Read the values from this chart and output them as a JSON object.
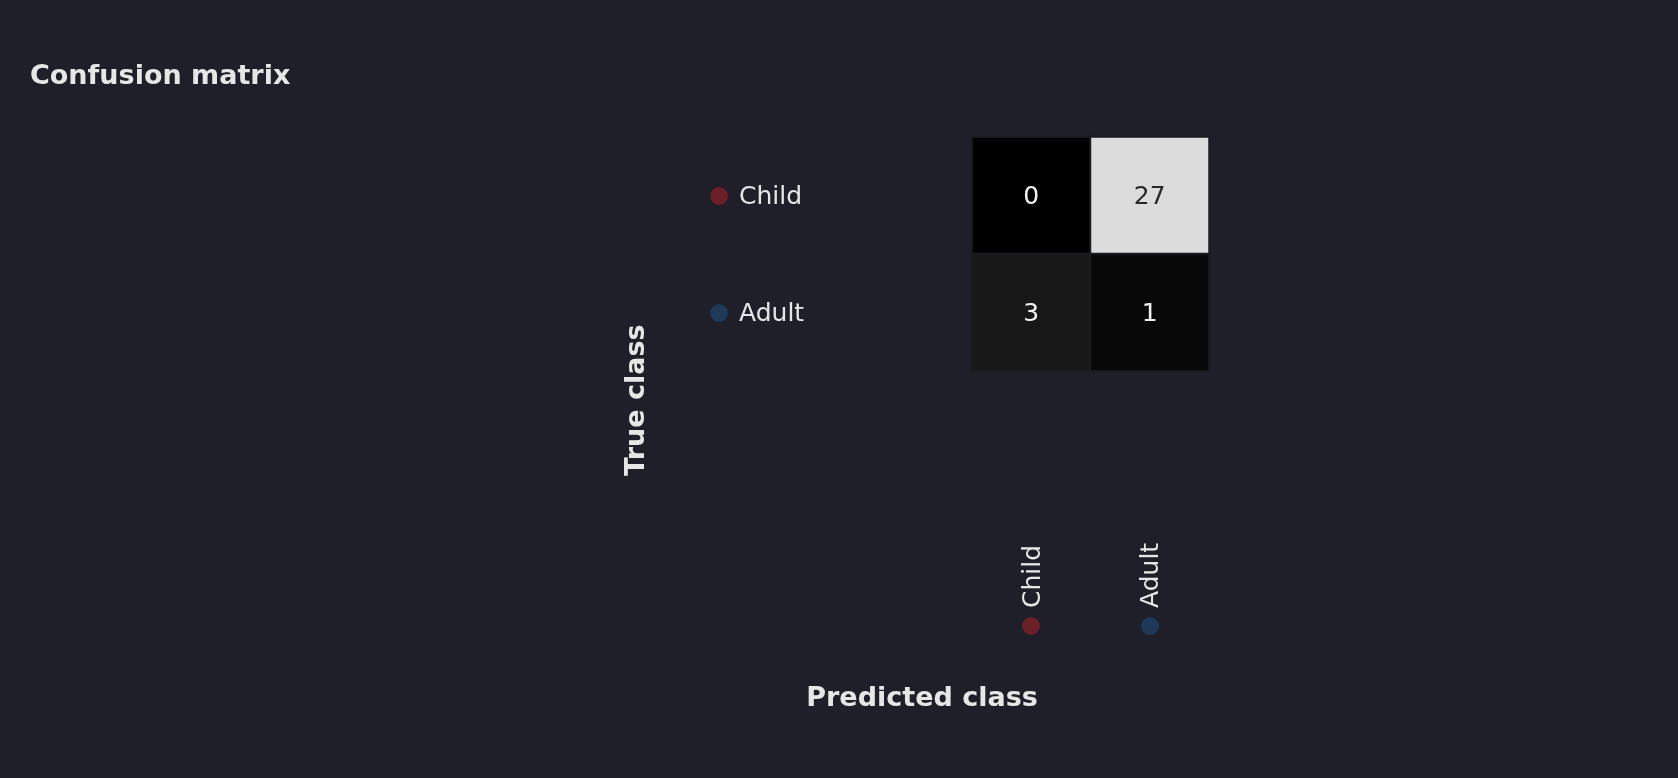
{
  "chart_data": {
    "type": "heatmap",
    "title": "Confusion matrix",
    "xlabel": "Predicted class",
    "ylabel": "True class",
    "categories": [
      "Child",
      "Adult"
    ],
    "y_categories": [
      "Child",
      "Adult"
    ],
    "cells": [
      [
        0,
        27
      ],
      [
        3,
        1
      ]
    ],
    "data_labels": true
  }
}
